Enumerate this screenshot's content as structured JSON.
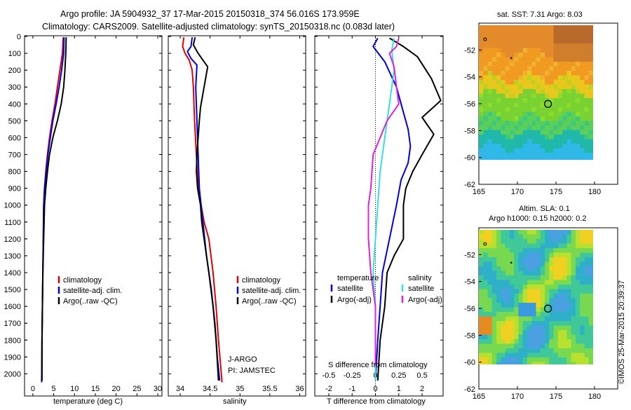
{
  "header": {
    "line1": "Argo profile: JA 5904932_37 17-Mar-2015 20150318_374 56.016S 173.959E",
    "line2": "Climatology: CARS2009. Satellite-adjusted climatology: synTS_20150318.nc (0.083d later)"
  },
  "footer": {
    "watermark": "©IMOS 25-Mar-2015 20:39:37"
  },
  "colors": {
    "climatology": "#e00000",
    "satellite": "#0000dd",
    "argo": "#000000",
    "salinity_satellite": "#33e0e0",
    "salinity_argo": "#e020e0"
  },
  "depth_ticks": [
    "0",
    "100",
    "200",
    "300",
    "400",
    "500",
    "600",
    "700",
    "800",
    "900",
    "1000",
    "1100",
    "1200",
    "1300",
    "1400",
    "1500",
    "1600",
    "1700",
    "1800",
    "1900",
    "2000"
  ],
  "chart_data": [
    {
      "id": "temperature",
      "type": "line",
      "xlabel": "temperature (deg C)",
      "ylabel": "",
      "xlim": [
        -2,
        31
      ],
      "ylim": [
        2060,
        0
      ],
      "xticks": [
        "0",
        "5",
        "10",
        "15",
        "20",
        "25",
        "30"
      ],
      "legend": {
        "placement": "middle-left",
        "entries": [
          "climatology",
          "satellite-adj. clim.",
          "Argo(..raw -QC)"
        ]
      },
      "series": [
        {
          "name": "climatology",
          "color": "#e00000",
          "points": [
            [
              7.3,
              5
            ],
            [
              7.1,
              100
            ],
            [
              6.5,
              200
            ],
            [
              5.9,
              300
            ],
            [
              5.3,
              400
            ],
            [
              4.6,
              500
            ],
            [
              4.0,
              600
            ],
            [
              3.5,
              700
            ],
            [
              3.1,
              800
            ],
            [
              2.8,
              900
            ],
            [
              2.6,
              1000
            ],
            [
              2.5,
              1200
            ],
            [
              2.4,
              1400
            ],
            [
              2.3,
              1600
            ],
            [
              2.2,
              1800
            ],
            [
              2.1,
              2050
            ]
          ]
        },
        {
          "name": "satellite-adj. clim.",
          "color": "#0000dd",
          "points": [
            [
              7.5,
              5
            ],
            [
              7.4,
              100
            ],
            [
              6.9,
              200
            ],
            [
              6.3,
              300
            ],
            [
              5.6,
              400
            ],
            [
              4.8,
              500
            ],
            [
              4.2,
              600
            ],
            [
              3.6,
              700
            ],
            [
              3.2,
              800
            ],
            [
              2.8,
              900
            ],
            [
              2.6,
              1000
            ],
            [
              2.5,
              1200
            ],
            [
              2.4,
              1400
            ],
            [
              2.3,
              1600
            ],
            [
              2.2,
              1800
            ],
            [
              2.1,
              2050
            ]
          ]
        },
        {
          "name": "Argo(..raw -QC)",
          "color": "#000000",
          "points": [
            [
              8.0,
              5
            ],
            [
              7.9,
              100
            ],
            [
              7.7,
              200
            ],
            [
              7.4,
              300
            ],
            [
              6.8,
              400
            ],
            [
              5.9,
              500
            ],
            [
              4.8,
              600
            ],
            [
              4.0,
              700
            ],
            [
              3.5,
              800
            ],
            [
              3.1,
              900
            ],
            [
              2.8,
              1000
            ],
            [
              2.6,
              1200
            ],
            [
              2.4,
              1400
            ],
            [
              2.3,
              1600
            ],
            [
              2.2,
              1800
            ],
            [
              2.2,
              2040
            ]
          ]
        }
      ]
    },
    {
      "id": "salinity",
      "type": "line",
      "xlabel": "salinity",
      "ylabel": "",
      "xlim": [
        33.8,
        36.1
      ],
      "ylim": [
        2060,
        0
      ],
      "xticks": [
        "34",
        "34.5",
        "35",
        "35.5",
        "36"
      ],
      "legend": {
        "placement": "middle-right",
        "entries": [
          "climatology",
          "satellite-adj. clim.",
          "Argo(..raw -QC)"
        ]
      },
      "annotation": [
        "J-ARGO",
        "PI: JAMSTEC"
      ],
      "series": [
        {
          "name": "climatology",
          "color": "#e00000",
          "points": [
            [
              34.06,
              5
            ],
            [
              34.04,
              60
            ],
            [
              34.08,
              100
            ],
            [
              34.15,
              140
            ],
            [
              34.2,
              200
            ],
            [
              34.22,
              300
            ],
            [
              34.24,
              500
            ],
            [
              34.27,
              700
            ],
            [
              34.3,
              900
            ],
            [
              34.4,
              1100
            ],
            [
              34.48,
              1200
            ],
            [
              34.55,
              1400
            ],
            [
              34.6,
              1600
            ],
            [
              34.64,
              1800
            ],
            [
              34.7,
              2050
            ]
          ]
        },
        {
          "name": "satellite-adj. clim.",
          "color": "#0000dd",
          "points": [
            [
              34.2,
              5
            ],
            [
              34.18,
              60
            ],
            [
              34.12,
              90
            ],
            [
              34.18,
              130
            ],
            [
              34.28,
              170
            ],
            [
              34.26,
              300
            ],
            [
              34.28,
              500
            ],
            [
              34.3,
              700
            ],
            [
              34.32,
              900
            ],
            [
              34.38,
              1100
            ],
            [
              34.44,
              1300
            ],
            [
              34.52,
              1500
            ],
            [
              34.58,
              1700
            ],
            [
              34.62,
              1900
            ],
            [
              34.66,
              2040
            ]
          ]
        },
        {
          "name": "Argo(..raw -QC)",
          "color": "#000000",
          "points": [
            [
              34.25,
              5
            ],
            [
              34.22,
              50
            ],
            [
              34.3,
              100
            ],
            [
              34.46,
              180
            ],
            [
              34.42,
              260
            ],
            [
              34.38,
              340
            ],
            [
              34.34,
              420
            ],
            [
              34.32,
              500
            ],
            [
              34.3,
              600
            ],
            [
              34.28,
              700
            ],
            [
              34.27,
              800
            ],
            [
              34.29,
              900
            ],
            [
              34.34,
              1000
            ],
            [
              34.36,
              1100
            ],
            [
              34.4,
              1200
            ],
            [
              34.48,
              1400
            ],
            [
              34.55,
              1600
            ],
            [
              34.6,
              1800
            ],
            [
              34.64,
              2040
            ]
          ]
        }
      ]
    },
    {
      "id": "difference",
      "type": "line",
      "xlabel": "T difference from climatology",
      "xlabel_top": "S difference from climatology",
      "ylabel": "",
      "xlim": [
        -2.6,
        2.9
      ],
      "ylim": [
        2060,
        0
      ],
      "xticks": [
        "-2",
        "-1",
        "0",
        "1",
        "2"
      ],
      "xticks_s": [
        "-0.5",
        "-0.25",
        "0",
        "0.25",
        "0.5"
      ],
      "legend": {
        "placement": "middle",
        "groups": [
          {
            "title": "temperature",
            "entries": [
              "satellite",
              "Argo(-adj)"
            ]
          },
          {
            "title": "salinity",
            "entries": [
              "satellite",
              "Argo(-adj)"
            ]
          }
        ]
      },
      "series": [
        {
          "name": "satellite",
          "group": "temperature",
          "color": "#0000dd",
          "points": [
            [
              0.1,
              10
            ],
            [
              -0.1,
              60
            ],
            [
              0.4,
              150
            ],
            [
              0.9,
              300
            ],
            [
              1.2,
              450
            ],
            [
              1.4,
              550
            ],
            [
              1.5,
              650
            ],
            [
              1.4,
              750
            ],
            [
              1.1,
              850
            ],
            [
              0.9,
              1000
            ],
            [
              0.6,
              1200
            ],
            [
              0.3,
              1400
            ],
            [
              0.2,
              1600
            ],
            [
              0.1,
              1800
            ],
            [
              0.0,
              2040
            ]
          ]
        },
        {
          "name": "Argo(-adj)",
          "group": "temperature",
          "color": "#000000",
          "points": [
            [
              0.6,
              10
            ],
            [
              1.2,
              60
            ],
            [
              1.8,
              120
            ],
            [
              2.4,
              250
            ],
            [
              2.8,
              380
            ],
            [
              2.0,
              480
            ],
            [
              2.5,
              580
            ],
            [
              2.0,
              700
            ],
            [
              1.6,
              800
            ],
            [
              1.3,
              900
            ],
            [
              1.2,
              1000
            ],
            [
              1.2,
              1200
            ],
            [
              0.8,
              1300
            ],
            [
              0.5,
              1400
            ],
            [
              0.4,
              1600
            ],
            [
              0.2,
              1800
            ],
            [
              0.1,
              2040
            ]
          ]
        },
        {
          "name": "satellite",
          "group": "salinity",
          "color": "#33e0e0",
          "points": [
            [
              0.8,
              10
            ],
            [
              0.7,
              80
            ],
            [
              0.8,
              200
            ],
            [
              0.6,
              400
            ],
            [
              0.4,
              600
            ],
            [
              0.2,
              800
            ],
            [
              0.1,
              1000
            ],
            [
              0.0,
              1200
            ],
            [
              -0.1,
              1400
            ],
            [
              0.0,
              1600
            ],
            [
              0.0,
              1800
            ],
            [
              0.0,
              2040
            ]
          ]
        },
        {
          "name": "Argo(-adj)",
          "group": "salinity",
          "color": "#e020e0",
          "points": [
            [
              1.0,
              10
            ],
            [
              0.9,
              60
            ],
            [
              0.6,
              100
            ],
            [
              0.8,
              180
            ],
            [
              0.9,
              300
            ],
            [
              1.0,
              400
            ],
            [
              0.5,
              500
            ],
            [
              0.2,
              600
            ],
            [
              -0.1,
              700
            ],
            [
              -0.2,
              900
            ],
            [
              -0.3,
              1000
            ],
            [
              -0.3,
              1200
            ],
            [
              -0.2,
              1400
            ],
            [
              0.0,
              1600
            ],
            [
              0.0,
              1800
            ],
            [
              0.0,
              1950
            ]
          ]
        }
      ]
    },
    {
      "id": "sst_map",
      "type": "heatmap",
      "title": "sat. SST: 7.31 Argo: 8.03",
      "xlim": [
        165,
        183
      ],
      "ylim": [
        -62,
        -50
      ],
      "xticks": [
        "165",
        "170",
        "175",
        "180"
      ],
      "yticks": [
        "-52",
        "-54",
        "-56",
        "-58",
        "-60",
        "-62"
      ],
      "float_position": [
        173.959,
        -56.016
      ]
    },
    {
      "id": "sla_map",
      "type": "heatmap",
      "title": "Altim. SLA: 0.1",
      "subtitle": "Argo h1000: 0.15 h2000: 0.2",
      "xlim": [
        165,
        183
      ],
      "ylim": [
        -62,
        -50
      ],
      "xticks": [
        "165",
        "170",
        "175",
        "180"
      ],
      "yticks": [
        "-52",
        "-54",
        "-56",
        "-58",
        "-60",
        "-62"
      ],
      "float_position": [
        173.959,
        -56.016
      ]
    }
  ]
}
